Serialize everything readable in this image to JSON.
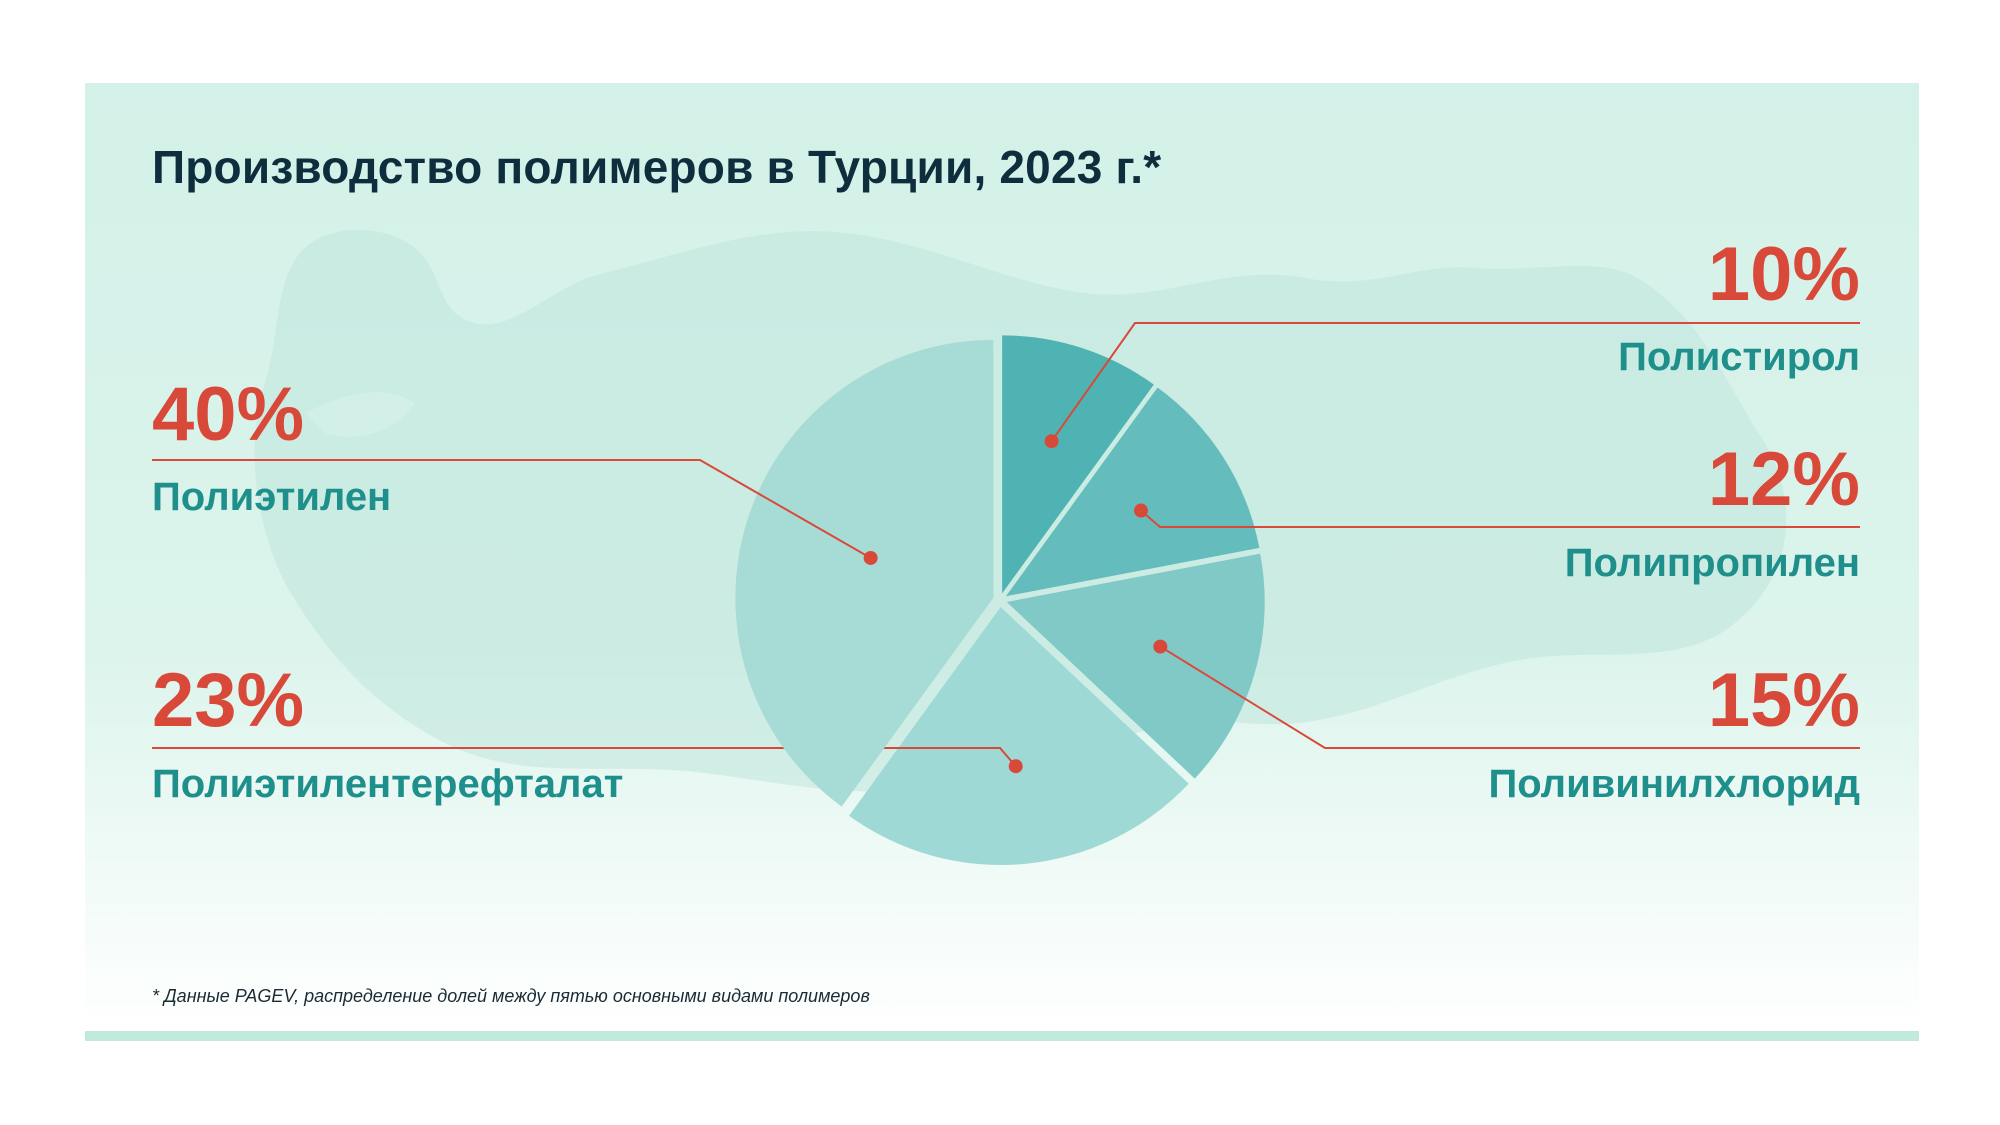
{
  "title": "Производство полимеров в Турции, 2023 г.*",
  "footnote": "* Данные PAGEV, распределение долей между пятью основными видами полимеров",
  "colors": {
    "accent": "#d9493a",
    "label": "#1f8f8c",
    "title": "#0f2e3d",
    "background": "#d3f1e8"
  },
  "chart_data": {
    "type": "pie",
    "title": "Производство полимеров в Турции, 2023 г.*",
    "slices": [
      {
        "label": "Полистирол",
        "value": 10,
        "value_label": "10%",
        "color": "#4fb3b3"
      },
      {
        "label": "Полипропилен",
        "value": 12,
        "value_label": "12%",
        "color": "#64bdbc"
      },
      {
        "label": "Поливинилхлорид",
        "value": 15,
        "value_label": "15%",
        "color": "#80c9c6"
      },
      {
        "label": "Полиэтилентерефталат",
        "value": 23,
        "value_label": "23%",
        "color": "#9fd9d6"
      },
      {
        "label": "Полиэтилен",
        "value": 40,
        "value_label": "40%",
        "color": "#a7dcd6"
      }
    ]
  }
}
